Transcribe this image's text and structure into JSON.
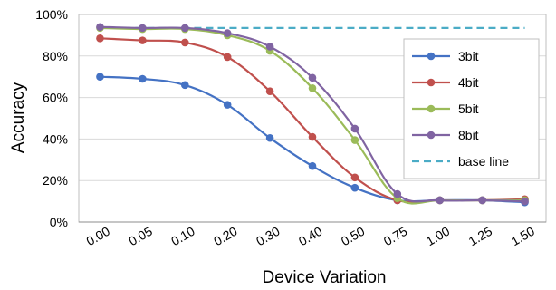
{
  "chart_data": {
    "type": "line",
    "title": "",
    "xlabel": "Device Variation",
    "ylabel": "Accuracy",
    "categories": [
      "0.00",
      "0.05",
      "0.10",
      "0.20",
      "0.30",
      "0.40",
      "0.50",
      "0.75",
      "1.00",
      "1.25",
      "1.50"
    ],
    "y_ticks": [
      "0%",
      "20%",
      "40%",
      "60%",
      "80%",
      "100%"
    ],
    "ylim": [
      0,
      100
    ],
    "grid": "horizontal",
    "legend_position": "right",
    "series": [
      {
        "name": "3bit",
        "color": "#4472C4",
        "values": [
          70,
          69,
          66,
          56.5,
          40.5,
          27,
          16.5,
          10.5,
          10.5,
          10.5,
          9.5
        ]
      },
      {
        "name": "4bit",
        "color": "#C0504D",
        "values": [
          88.5,
          87.5,
          86.5,
          79.5,
          63,
          41,
          21.5,
          10.5,
          10.5,
          10.5,
          11
        ]
      },
      {
        "name": "5bit",
        "color": "#9BBB59",
        "values": [
          93.5,
          93,
          93,
          90,
          82.5,
          64.5,
          39.5,
          11.5,
          10.5,
          10.5,
          10.5
        ]
      },
      {
        "name": "8bit",
        "color": "#8064A2",
        "values": [
          94,
          93.5,
          93.5,
          91,
          84.5,
          69.5,
          45,
          13.5,
          10.5,
          10.5,
          10
        ]
      }
    ],
    "reference_line": {
      "name": "base line",
      "color": "#4BACC6",
      "value": 93.5
    }
  }
}
